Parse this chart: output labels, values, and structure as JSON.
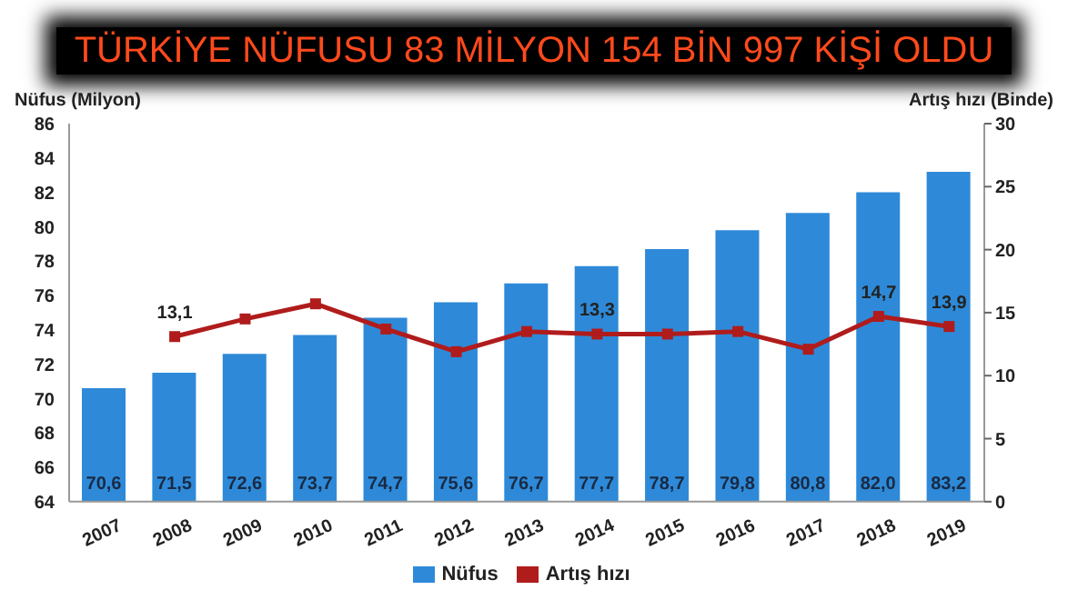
{
  "chart_data": {
    "type": "bar",
    "title": "TÜRKİYE NÜFUSU 83 MİLYON 154 BİN 997 KİŞİ OLDU",
    "ylabel": "Nüfus (Milyon)",
    "y2label": "Artış hızı (Binde)",
    "categories": [
      "2007",
      "2008",
      "2009",
      "2010",
      "2011",
      "2012",
      "2013",
      "2014",
      "2015",
      "2016",
      "2017",
      "2018",
      "2019"
    ],
    "series": [
      {
        "name": "Nüfus",
        "color": "#2e8ad8",
        "values": [
          70.6,
          71.5,
          72.6,
          73.7,
          74.7,
          75.6,
          76.7,
          77.7,
          78.7,
          79.8,
          80.8,
          82.0,
          83.2
        ],
        "value_labels": [
          "70,6",
          "71,5",
          "72,6",
          "73,7",
          "74,7",
          "75,6",
          "76,7",
          "77,7",
          "78,7",
          "79,8",
          "80,8",
          "82,0",
          "83,2"
        ]
      },
      {
        "name": "Artış hızı",
        "type": "line",
        "axis": "y2",
        "color": "#b01c1c",
        "marker": "square",
        "values": [
          null,
          13.1,
          14.5,
          15.7,
          13.7,
          11.9,
          13.5,
          13.3,
          13.3,
          13.5,
          12.1,
          14.7,
          13.9
        ],
        "value_labels": [
          null,
          "13,1",
          null,
          null,
          null,
          null,
          null,
          "13,3",
          null,
          null,
          null,
          "14,7",
          "13,9"
        ]
      }
    ],
    "ylim": [
      64,
      86
    ],
    "yticks": [
      64,
      66,
      68,
      70,
      72,
      74,
      76,
      78,
      80,
      82,
      84,
      86
    ],
    "y2lim": [
      0,
      30
    ],
    "y2ticks": [
      0,
      5,
      10,
      15,
      20,
      25,
      30
    ],
    "grid": false,
    "legend": "bottom"
  }
}
